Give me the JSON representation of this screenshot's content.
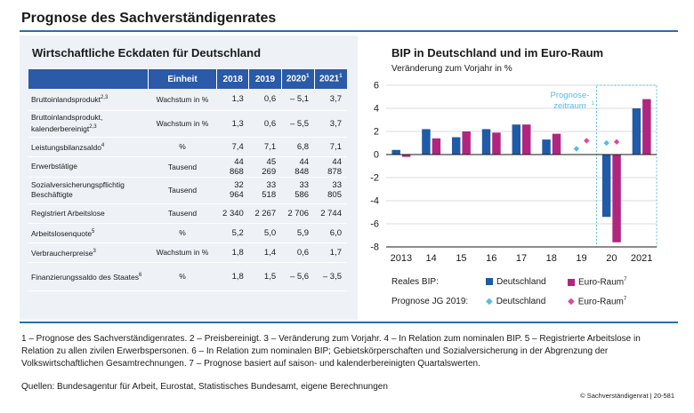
{
  "page": {
    "title": "Prognose des Sachverständigenrates",
    "footnotes": "1 – Prognose des Sachverständigenrates.  2 – Preisbereinigt.  3 – Veränderung zum Vorjahr.  4 – In Relation zum nominalen BIP.  5 – Registrierte Arbeitslose in Relation zu allen zivilen Erwerbspersonen.  6 – In Relation zum nominalen BIP; Gebietskörperschaften und Sozialversicherung in der Abgrenzung der Volkswirtschaftlichen Gesamtrechnungen.  7 – Prognose basiert auf saison- und kalenderbereinigten Quartalswerten.",
    "sources": "Quellen: Bundesagentur für Arbeit, Eurostat, Statistisches Bundesamt, eigene Berechnungen",
    "credit": "© Sachverständigenrat | 20-581"
  },
  "table": {
    "title": "Wirtschaftliche Eckdaten für Deutschland",
    "headers": [
      "",
      "Einheit",
      "2018",
      "2019",
      "2020",
      "2021"
    ],
    "header_sups": [
      "",
      "",
      "",
      "",
      "1",
      "1"
    ],
    "rows": [
      {
        "label": "Bruttoinlandsprodukt",
        "sup": "2,3",
        "unit": "Wachstum in %",
        "values": [
          "1,3",
          "0,6",
          "– 5,1",
          "3,7"
        ]
      },
      {
        "label": "Bruttoinlandsprodukt, kalenderbereinigt",
        "sup": "2,3",
        "unit": "Wachstum in %",
        "values": [
          "1,3",
          "0,6",
          "– 5,5",
          "3,7"
        ]
      },
      {
        "label": "Leistungsbilanzsaldo",
        "sup": "4",
        "unit": "%",
        "values": [
          "7,4",
          "7,1",
          "6,8",
          "7,1"
        ]
      },
      {
        "label": "Erwerbstätige",
        "sup": "",
        "unit": "Tausend",
        "values": [
          "44 868",
          "45 269",
          "44 848",
          "44 878"
        ]
      },
      {
        "label": "Sozialversicherungspflichtig Beschäftigte",
        "sup": "",
        "unit": "Tausend",
        "values": [
          "32 964",
          "33 518",
          "33 586",
          "33 805"
        ]
      },
      {
        "label": "Registriert Arbeitslose",
        "sup": "",
        "unit": "Tausend",
        "values": [
          "2 340",
          "2 267",
          "2 706",
          "2 744"
        ]
      },
      {
        "label": "Arbeitslosenquote",
        "sup": "5",
        "unit": "%",
        "values": [
          "5,2",
          "5,0",
          "5,9",
          "6,0"
        ]
      },
      {
        "label": "Verbraucherpreise",
        "sup": "3",
        "unit": "Wachstum in %",
        "values": [
          "1,8",
          "1,4",
          "0,6",
          "1,7"
        ]
      },
      {
        "label": "Finanzierungssaldo des Staates",
        "sup": "6",
        "unit": "%",
        "values": [
          "1,8",
          "1,5",
          "– 5,6",
          "– 3,5"
        ]
      }
    ]
  },
  "chart_data": {
    "type": "bar",
    "title": "BIP in Deutschland und im Euro-Raum",
    "ylabel": "Veränderung zum Vorjahr in %",
    "categories": [
      "2013",
      "14",
      "15",
      "16",
      "17",
      "18",
      "19",
      "20",
      "2021"
    ],
    "ylim": [
      -8,
      6
    ],
    "yticks": [
      -8,
      -6,
      -4,
      -2,
      0,
      2,
      4,
      6
    ],
    "series": [
      {
        "name": "Deutschland",
        "color": "#1f5ba6",
        "values": [
          0.4,
          2.2,
          1.5,
          2.2,
          2.6,
          1.3,
          null,
          -5.4,
          4.0
        ]
      },
      {
        "name": "Euro-Raum",
        "sup": "7",
        "color": "#b0267f",
        "values": [
          -0.2,
          1.4,
          2.0,
          1.9,
          2.6,
          1.8,
          null,
          -7.6,
          4.8
        ]
      }
    ],
    "prognose_jg_2019": [
      {
        "name": "Deutschland",
        "color": "#55bce8",
        "category": "19",
        "value": 0.5
      },
      {
        "name": "Deutschland",
        "color": "#55bce8",
        "category": "20",
        "value": 1.0
      },
      {
        "name": "Euro-Raum",
        "sup": "7",
        "color": "#e0479e",
        "category": "19",
        "value": 1.2
      },
      {
        "name": "Euro-Raum",
        "sup": "7",
        "color": "#e0479e",
        "category": "20",
        "value": 1.1
      }
    ],
    "forecast_label": "Prognose-zeitraum",
    "forecast_sup": "1",
    "legend": {
      "row1_label": "Reales BIP:",
      "row2_label": "Prognose JG 2019:",
      "de": "Deutschland",
      "eu": "Euro-Raum",
      "eu_sup": "7"
    }
  }
}
